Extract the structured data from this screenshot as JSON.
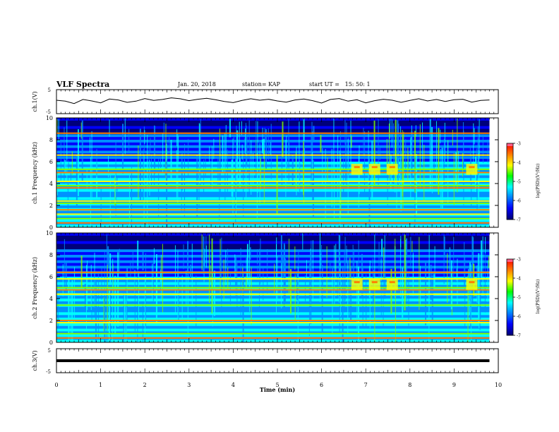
{
  "header": {
    "title": "VLF Spectra",
    "date": "Jan. 20, 2018",
    "station": "station= KAP",
    "start_ut": "start UT =   15: 50: 1"
  },
  "colors": {
    "palette": [
      "#00007a",
      "#0000ff",
      "#0090ff",
      "#00ffff",
      "#7fff00",
      "#ffff00",
      "#ff8000",
      "#ff0000",
      "#ff80ff"
    ],
    "trace": "#000000"
  },
  "chart_data": [
    {
      "type": "line",
      "panel": "ch1-voltage",
      "ylabel": "ch.1(V)",
      "ylim": [
        -5,
        5
      ],
      "yticks": [
        "5",
        "-5"
      ],
      "xlim": [
        0,
        10
      ],
      "description": "noisy waveform oscillating roughly between -1.5 V and +2 V",
      "series": [
        {
          "values": [
            0.6,
            0.2,
            -0.8,
            0.9,
            0.3,
            -0.5,
            1.1,
            0.7,
            -0.3,
            0.2,
            1.3,
            0.5,
            0.9,
            1.6,
            1.2,
            0.4,
            1.0,
            1.4,
            0.8,
            0.1,
            -0.4,
            0.5,
            1.2,
            0.6,
            1.0,
            0.3,
            -0.2,
            0.7,
            1.1,
            0.4,
            -0.6,
            0.9,
            1.3,
            0.2,
            0.8,
            -0.5,
            0.4,
            1.0,
            0.6,
            -0.3,
            0.5,
            1.2,
            0.3,
            0.9,
            0.1,
            0.8,
            1.0,
            -0.2,
            0.5,
            0.7
          ]
        }
      ]
    },
    {
      "type": "heatmap",
      "panel": "ch1-spectrogram",
      "ylabel": "ch.1\nFrequency (kHz)",
      "ylim": [
        0,
        10
      ],
      "yticks": [
        "0",
        "2",
        "4",
        "6",
        "8",
        "10"
      ],
      "xlim": [
        0,
        10
      ],
      "color_scale": {
        "label": "log(PSD)(V²/Hz)",
        "range": [
          -7,
          -3
        ],
        "ticks": [
          "-3",
          "-4",
          "-5",
          "-6",
          "-7"
        ]
      },
      "persistent_lines_khz": [
        0.4,
        0.8,
        1.2,
        1.6,
        2.2,
        2.4,
        3.6,
        3.8,
        4.2,
        5.0,
        5.3,
        6.6,
        8.6
      ],
      "emission_events_min": [
        6.8,
        7.2,
        7.6,
        9.4
      ]
    },
    {
      "type": "heatmap",
      "panel": "ch2-spectrogram",
      "ylabel": "ch.2\nFrequency (kHz)",
      "ylim": [
        0,
        10
      ],
      "yticks": [
        "0",
        "2",
        "4",
        "6",
        "8",
        "10"
      ],
      "xlim": [
        0,
        10
      ],
      "color_scale": {
        "label": "log(PSD)(V²/Hz)",
        "range": [
          -7,
          -3
        ],
        "ticks": [
          "-3",
          "-4",
          "-5",
          "-6",
          "-7"
        ]
      },
      "persistent_lines_khz": [
        0.4,
        0.8,
        1.8,
        2.0,
        3.4,
        4.4,
        4.8,
        5.0,
        5.8,
        6.4
      ],
      "emission_events_min": [
        6.8,
        7.2,
        7.6,
        9.4
      ]
    },
    {
      "type": "line",
      "panel": "ch3-voltage",
      "ylabel": "ch.3(V)",
      "ylim": [
        -5,
        5
      ],
      "yticks": [
        "5",
        "-5"
      ],
      "xlim": [
        0,
        10
      ],
      "series": [
        {
          "x": [
            0,
            9.8
          ],
          "values": [
            0,
            0
          ]
        }
      ]
    }
  ],
  "x_axis": {
    "label": "Time (min)",
    "ticks": [
      "0",
      "1",
      "2",
      "3",
      "4",
      "5",
      "6",
      "7",
      "8",
      "9",
      "10"
    ]
  }
}
